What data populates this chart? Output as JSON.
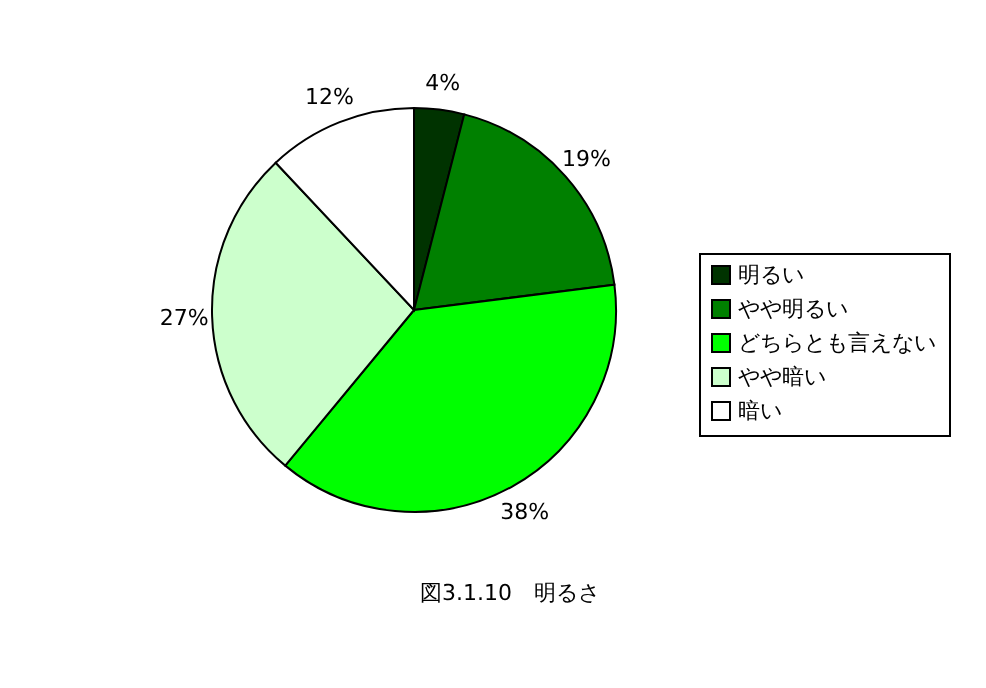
{
  "chart_data": {
    "type": "pie",
    "title": "図3.1.10　明るさ",
    "categories": [
      "明るい",
      "やや明るい",
      "どちらとも言えない",
      "やや暗い",
      "暗い"
    ],
    "values": [
      4,
      19,
      38,
      27,
      12
    ],
    "colors": [
      "#003300",
      "#008000",
      "#00ff00",
      "#ccffcc",
      "#ffffff"
    ],
    "value_labels": [
      "4%",
      "19%",
      "38%",
      "27%",
      "12%"
    ],
    "legend": "right"
  }
}
